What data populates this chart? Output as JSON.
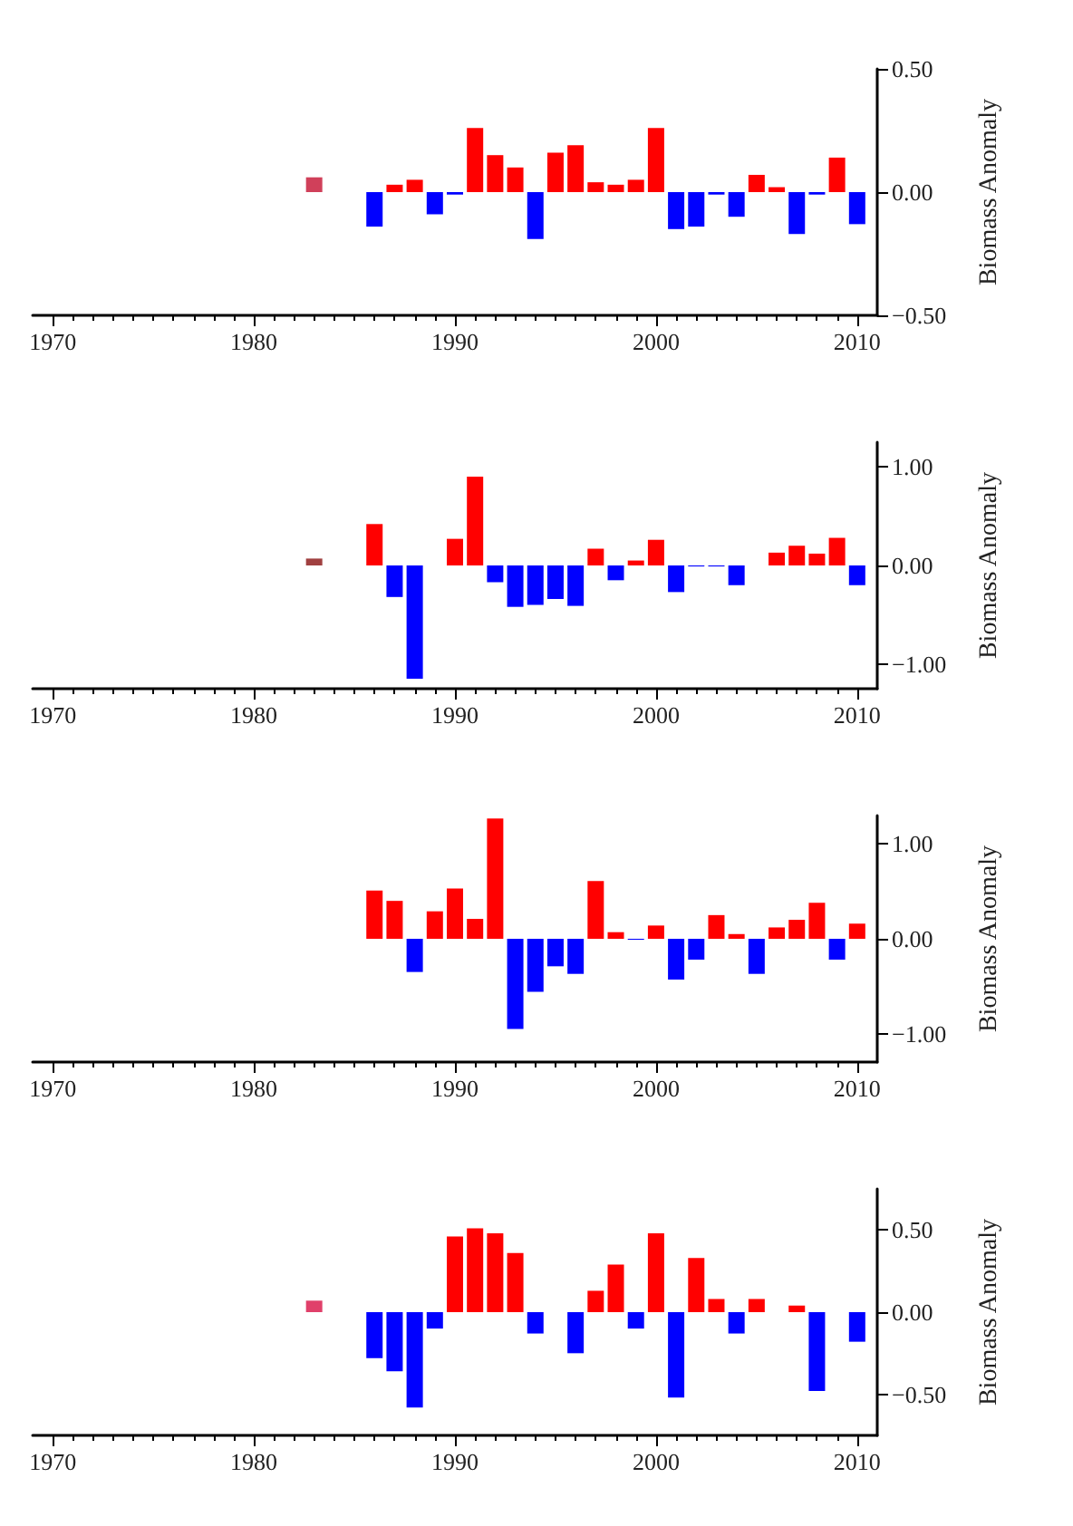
{
  "chart_data": [
    {
      "type": "bar",
      "ylabel": "Biomass Anomaly",
      "x": [
        1983,
        1984,
        1985,
        1986,
        1987,
        1988,
        1989,
        1990,
        1991,
        1992,
        1993,
        1994,
        1995,
        1996,
        1997,
        1998,
        1999,
        2000,
        2001,
        2002,
        2003,
        2004,
        2005,
        2006,
        2007,
        2008,
        2009,
        2010
      ],
      "values": [
        0.06,
        null,
        null,
        -0.14,
        0.03,
        0.05,
        -0.09,
        -0.01,
        0.26,
        0.15,
        0.1,
        -0.19,
        0.16,
        0.19,
        0.04,
        0.03,
        0.05,
        0.26,
        -0.15,
        -0.14,
        -0.01,
        -0.1,
        0.07,
        0.02,
        -0.17,
        -0.01,
        0.14,
        -0.13
      ],
      "colors": [
        "#d0405a",
        null,
        null,
        "#0000ff",
        "#ff0000",
        "#ff0000",
        "#0000ff",
        "#0000ff",
        "#ff0000",
        "#ff0000",
        "#ff0000",
        "#0000ff",
        "#ff0000",
        "#ff0000",
        "#ff0000",
        "#ff0000",
        "#ff0000",
        "#ff0000",
        "#0000ff",
        "#0000ff",
        "#0000ff",
        "#0000ff",
        "#ff0000",
        "#ff0000",
        "#0000ff",
        "#0000ff",
        "#ff0000",
        "#0000ff"
      ],
      "xlim": [
        1969,
        2011
      ],
      "xticks": [
        1970,
        1980,
        1990,
        2000,
        2010
      ],
      "ylim": [
        -0.5,
        0.5
      ],
      "yticks": [
        {
          "value": -0.5,
          "label": "−0.50"
        },
        {
          "value": 0,
          "label": "0.00"
        },
        {
          "value": 0.5,
          "label": "0.50"
        }
      ],
      "grid": false
    },
    {
      "type": "bar",
      "ylabel": "Biomass Anomaly",
      "x": [
        1983,
        1984,
        1985,
        1986,
        1987,
        1988,
        1989,
        1990,
        1991,
        1992,
        1993,
        1994,
        1995,
        1996,
        1997,
        1998,
        1999,
        2000,
        2001,
        2002,
        2003,
        2004,
        2005,
        2006,
        2007,
        2008,
        2009,
        2010
      ],
      "values": [
        0.07,
        null,
        null,
        0.42,
        -0.32,
        -1.15,
        0.0,
        0.27,
        0.9,
        -0.17,
        -0.42,
        -0.4,
        -0.34,
        -0.41,
        0.17,
        -0.15,
        0.05,
        0.26,
        -0.27,
        -0.01,
        -0.01,
        -0.2,
        0.0,
        0.13,
        0.2,
        0.12,
        0.28,
        -0.2
      ],
      "colors": [
        "#a04040",
        null,
        null,
        "#ff0000",
        "#0000ff",
        "#0000ff",
        "#ff0000",
        "#ff0000",
        "#ff0000",
        "#0000ff",
        "#0000ff",
        "#0000ff",
        "#0000ff",
        "#0000ff",
        "#ff0000",
        "#0000ff",
        "#ff0000",
        "#ff0000",
        "#0000ff",
        "#0000ff",
        "#0000ff",
        "#0000ff",
        "#ff0000",
        "#ff0000",
        "#ff0000",
        "#ff0000",
        "#ff0000",
        "#0000ff"
      ],
      "xlim": [
        1969,
        2011
      ],
      "xticks": [
        1970,
        1980,
        1990,
        2000,
        2010
      ],
      "ylim": [
        -1.25,
        1.25
      ],
      "yticks": [
        {
          "value": -1,
          "label": "−1.00"
        },
        {
          "value": 0,
          "label": "0.00"
        },
        {
          "value": 1,
          "label": "1.00"
        }
      ],
      "grid": false
    },
    {
      "type": "bar",
      "ylabel": "Biomass Anomaly",
      "x": [
        1986,
        1987,
        1988,
        1989,
        1990,
        1991,
        1992,
        1993,
        1994,
        1995,
        1996,
        1997,
        1998,
        1999,
        2000,
        2001,
        2002,
        2003,
        2004,
        2005,
        2006,
        2007,
        2008,
        2009,
        2010
      ],
      "values": [
        0.51,
        0.4,
        -0.35,
        0.29,
        0.53,
        0.21,
        1.27,
        -0.95,
        -0.56,
        -0.29,
        -0.37,
        0.61,
        0.07,
        -0.01,
        0.14,
        -0.43,
        -0.22,
        0.25,
        0.05,
        -0.37,
        0.12,
        0.2,
        0.38,
        -0.22,
        0.16
      ],
      "colors": [
        "#ff0000",
        "#ff0000",
        "#0000ff",
        "#ff0000",
        "#ff0000",
        "#ff0000",
        "#ff0000",
        "#0000ff",
        "#0000ff",
        "#0000ff",
        "#0000ff",
        "#ff0000",
        "#ff0000",
        "#0000ff",
        "#ff0000",
        "#0000ff",
        "#0000ff",
        "#ff0000",
        "#ff0000",
        "#0000ff",
        "#ff0000",
        "#ff0000",
        "#ff0000",
        "#0000ff",
        "#ff0000"
      ],
      "xlim": [
        1969,
        2011
      ],
      "xticks": [
        1970,
        1980,
        1990,
        2000,
        2010
      ],
      "ylim": [
        -1.3,
        1.3
      ],
      "yticks": [
        {
          "value": -1,
          "label": "−1.00"
        },
        {
          "value": 0,
          "label": "0.00"
        },
        {
          "value": 1,
          "label": "1.00"
        }
      ],
      "grid": false
    },
    {
      "type": "bar",
      "ylabel": "Biomass Anomaly",
      "x": [
        1983,
        1984,
        1985,
        1986,
        1987,
        1988,
        1989,
        1990,
        1991,
        1992,
        1993,
        1994,
        1995,
        1996,
        1997,
        1998,
        1999,
        2000,
        2001,
        2002,
        2003,
        2004,
        2005,
        2006,
        2007,
        2008,
        2009,
        2010
      ],
      "values": [
        0.07,
        null,
        null,
        -0.28,
        -0.36,
        -0.58,
        -0.1,
        0.46,
        0.51,
        0.48,
        0.36,
        -0.13,
        null,
        -0.25,
        0.13,
        0.29,
        -0.1,
        0.48,
        -0.52,
        0.33,
        0.08,
        -0.13,
        0.08,
        0.0,
        0.04,
        -0.48,
        null,
        -0.18
      ],
      "colors": [
        "#e0406a",
        null,
        null,
        "#0000ff",
        "#0000ff",
        "#0000ff",
        "#0000ff",
        "#ff0000",
        "#ff0000",
        "#ff0000",
        "#ff0000",
        "#0000ff",
        null,
        "#0000ff",
        "#ff0000",
        "#ff0000",
        "#0000ff",
        "#ff0000",
        "#0000ff",
        "#ff0000",
        "#ff0000",
        "#0000ff",
        "#ff0000",
        "#ff0000",
        "#ff0000",
        "#0000ff",
        null,
        "#0000ff"
      ],
      "xlim": [
        1969,
        2011
      ],
      "xticks": [
        1970,
        1980,
        1990,
        2000,
        2010
      ],
      "ylim": [
        -0.75,
        0.75
      ],
      "yticks": [
        {
          "value": -0.5,
          "label": "−0.50"
        },
        {
          "value": 0,
          "label": "0.00"
        },
        {
          "value": 0.5,
          "label": "0.50"
        }
      ],
      "grid": false
    }
  ]
}
